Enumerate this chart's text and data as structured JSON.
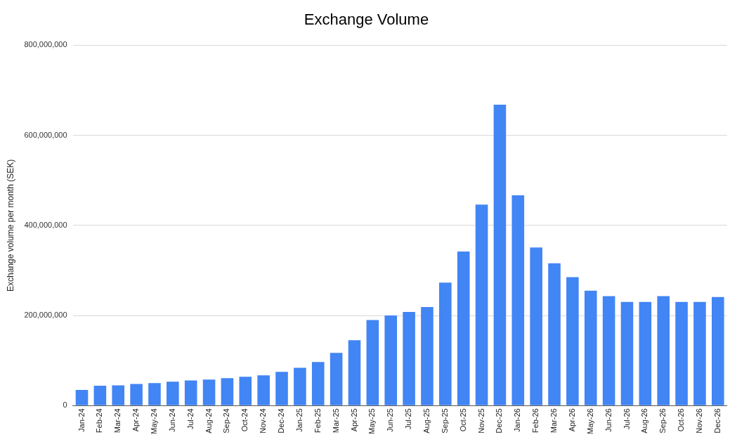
{
  "chart_data": {
    "type": "bar",
    "title": "Exchange Volume",
    "ylabel": "Exchange volume per month (SEK)",
    "categories": [
      "Jan-24",
      "Feb-24",
      "Mar-24",
      "Apr-24",
      "May-24",
      "Jun-24",
      "Jul-24",
      "Aug-24",
      "Sep-24",
      "Oct-24",
      "Nov-24",
      "Dec-24",
      "Jan-25",
      "Feb-25",
      "Mar-25",
      "Apr-25",
      "May-25",
      "Jun-25",
      "Jul-25",
      "Aug-25",
      "Sep-25",
      "Oct-25",
      "Nov-25",
      "Dec-25",
      "Jan-26",
      "Feb-26",
      "Mar-26",
      "Apr-26",
      "May-26",
      "Jun-26",
      "Jul-26",
      "Aug-26",
      "Sep-26",
      "Oct-26",
      "Nov-26",
      "Dec-26"
    ],
    "values": [
      35000000,
      44000000,
      45000000,
      48000000,
      50000000,
      53000000,
      56000000,
      58000000,
      61000000,
      64000000,
      67000000,
      75000000,
      84000000,
      97000000,
      117000000,
      145000000,
      190000000,
      200000000,
      208000000,
      219000000,
      273000000,
      342000000,
      446000000,
      668000000,
      467000000,
      351000000,
      316000000,
      285000000,
      255000000,
      243000000,
      230000000,
      230000000,
      243000000,
      230000000,
      230000000,
      241000000
    ],
    "color": "#4285f4",
    "ylim": [
      0,
      800000000
    ],
    "yticks": [
      {
        "value": 0,
        "label": "0"
      },
      {
        "value": 200000000,
        "label": "200,000,000"
      },
      {
        "value": 400000000,
        "label": "400,000,000"
      },
      {
        "value": 600000000,
        "label": "600,000,000"
      },
      {
        "value": 800000000,
        "label": "800,000,000"
      }
    ],
    "grid": "y",
    "legend": false
  }
}
